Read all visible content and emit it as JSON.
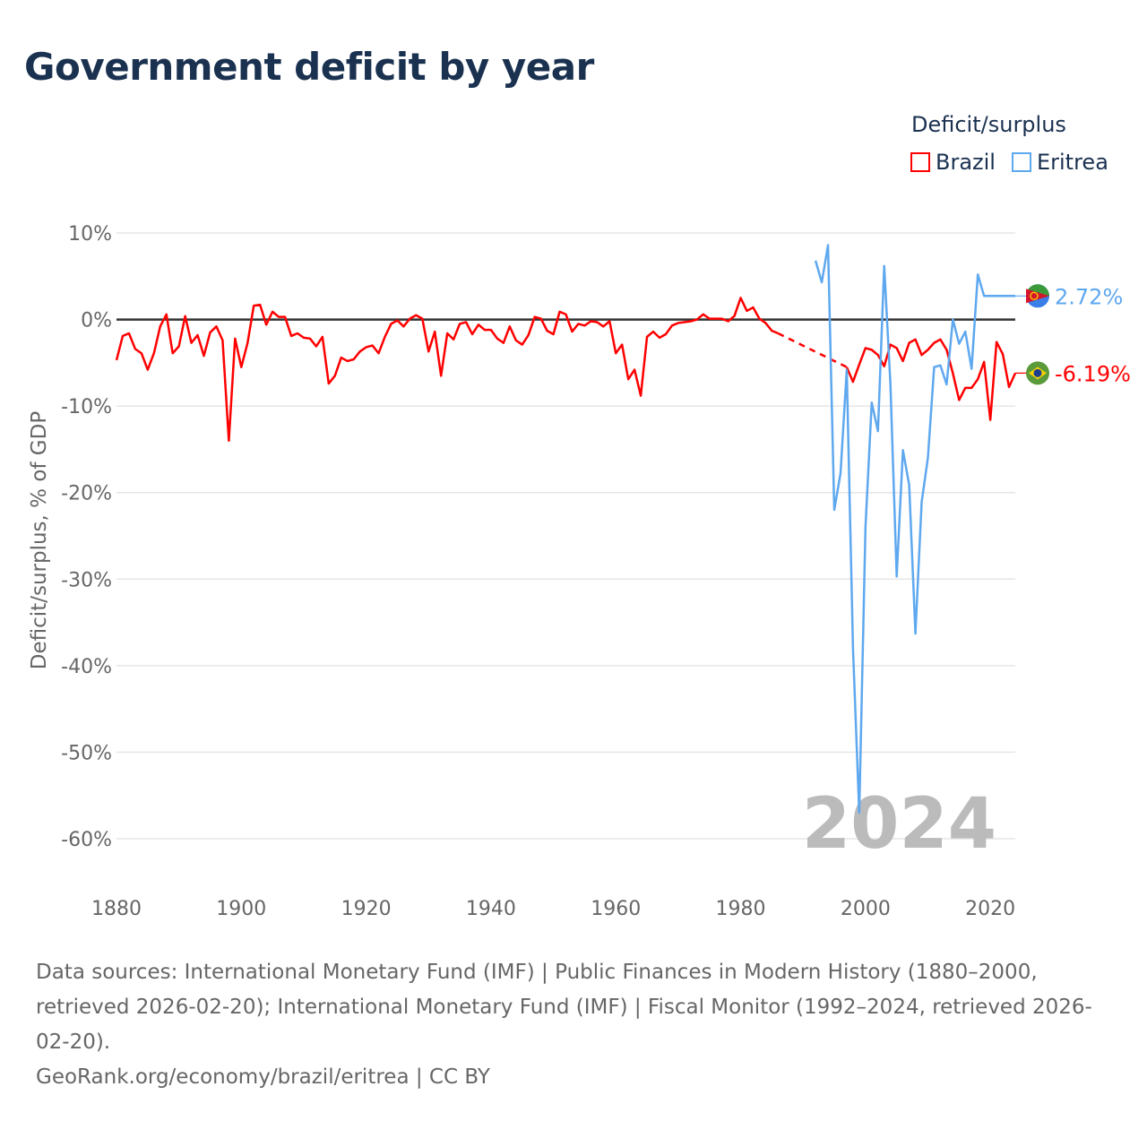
{
  "title": "Government deficit by year",
  "legend": {
    "title": "Deficit/surplus",
    "items": [
      {
        "name": "Brazil",
        "color": "#ff0000"
      },
      {
        "name": "Eritrea",
        "color": "#5ea8ef"
      }
    ]
  },
  "footer": {
    "sources": "Data sources: International Monetary Fund (IMF) | Public Finances in Modern History (1880–2000, retrieved 2026-02-20); International Monetary Fund (IMF) | Fiscal Monitor (1992–2024, retrieved 2026-02-20).",
    "credit": "GeoRank.org/economy/brazil/eritrea | CC BY"
  },
  "chart_data": {
    "type": "line",
    "title": "Government deficit by year",
    "xlabel": "",
    "ylabel": "Deficit/surplus, % of GDP",
    "xlim": [
      1880,
      2024
    ],
    "ylim": [
      -60,
      10
    ],
    "x_ticks": [
      "1880",
      "1900",
      "1920",
      "1940",
      "1960",
      "1980",
      "2000",
      "2020"
    ],
    "y_ticks": [
      "10%",
      "0%",
      "-10%",
      "-20%",
      "-30%",
      "-40%",
      "-50%",
      "-60%"
    ],
    "current_year_label": "2024",
    "grid": true,
    "legend_position": "top-right",
    "series": [
      {
        "name": "Brazil",
        "color": "#ff0000",
        "end_label": "-6.19%",
        "start_year": 1880,
        "values": [
          -4.7,
          -1.9,
          -1.6,
          -3.4,
          -3.9,
          -5.8,
          -3.9,
          -0.8,
          0.6,
          -3.9,
          -3.1,
          0.4,
          -2.7,
          -1.8,
          -4.2,
          -1.5,
          -0.8,
          -2.4,
          -14,
          -2.2,
          -5.5,
          -2.7,
          1.6,
          1.7,
          -0.6,
          0.9,
          0.3,
          0.3,
          -1.9,
          -1.6,
          -2.1,
          -2.2,
          -3.1,
          -2.0,
          -7.4,
          -6.5,
          -4.4,
          -4.8,
          -4.6,
          -3.7,
          -3.2,
          -3.0,
          -3.9,
          -2.0,
          -0.5,
          -0.1,
          -0.8,
          0.1,
          0.5,
          0.1,
          -3.7,
          -1.4,
          -6.5,
          -1.6,
          -2.3,
          -0.5,
          -0.3,
          -1.7,
          -0.6,
          -1.2,
          -1.2,
          -2.2,
          -2.7,
          -0.8,
          -2.4,
          -2.9,
          -1.8,
          0.3,
          0.1,
          -1.3,
          -1.7,
          0.9,
          0.6,
          -1.4,
          -0.5,
          -0.7,
          -0.2,
          -0.3,
          -0.8,
          -0.2,
          -3.9,
          -2.9,
          -6.9,
          -5.8,
          -8.8,
          -2.0,
          -1.4,
          -2.1,
          -1.7,
          -0.7,
          -0.4,
          -0.3,
          -0.2,
          0.0,
          0.6,
          0.1,
          0.1,
          0.1,
          -0.2,
          0.4,
          2.5,
          1.0,
          1.4,
          0.1,
          -0.4,
          -1.3,
          -1.6,
          null,
          null,
          null,
          null,
          null,
          null,
          null,
          null,
          null,
          null,
          -5.5,
          -7.2,
          -5.2,
          -3.3,
          -3.5,
          -4.1,
          -5.4,
          -2.9,
          -3.3,
          -4.8,
          -2.7,
          -2.3,
          -4.1,
          -3.5,
          -2.7,
          -2.3,
          -3.5,
          -6.2,
          -9.3,
          -7.9,
          -7.9,
          -6.9,
          -4.9,
          -11.6,
          -2.6,
          -4.0,
          -7.8,
          -6.19
        ]
      },
      {
        "name": "Eritrea",
        "color": "#5ea8ef",
        "end_label": "2.72%",
        "start_year": 1992,
        "values": [
          6.8,
          4.3,
          8.6,
          -22,
          -17.8,
          -5.8,
          -38,
          -57,
          -24,
          -9.6,
          -12.9,
          6.2,
          -7.5,
          -29.7,
          -15.1,
          -19.1,
          -36.3,
          -21.1,
          -16,
          -5.5,
          -5.3,
          -7.5,
          0,
          -2.8,
          -1.4,
          -5.7,
          5.2,
          2.72,
          2.72,
          2.72,
          2.72,
          2.72,
          2.72
        ]
      }
    ]
  }
}
